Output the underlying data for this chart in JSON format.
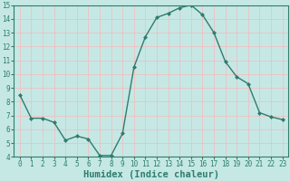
{
  "x": [
    0,
    1,
    2,
    3,
    4,
    5,
    6,
    7,
    8,
    9,
    10,
    11,
    12,
    13,
    14,
    15,
    16,
    17,
    18,
    19,
    20,
    21,
    22,
    23
  ],
  "y": [
    8.5,
    6.8,
    6.8,
    6.5,
    5.2,
    5.5,
    5.3,
    4.1,
    4.1,
    5.7,
    10.5,
    12.7,
    14.1,
    14.4,
    14.8,
    15.0,
    14.3,
    13.0,
    10.9,
    9.8,
    9.3,
    7.2,
    6.9,
    6.7
  ],
  "line_color": "#2e7d6e",
  "marker": "D",
  "marker_size": 2,
  "bg_color": "#c5e8e5",
  "grid_color": "#f0c0c0",
  "axis_color": "#2e7d6e",
  "xlabel": "Humidex (Indice chaleur)",
  "ylim": [
    4,
    15
  ],
  "xlim": [
    -0.5,
    23.5
  ],
  "yticks": [
    4,
    5,
    6,
    7,
    8,
    9,
    10,
    11,
    12,
    13,
    14,
    15
  ],
  "xticks": [
    0,
    1,
    2,
    3,
    4,
    5,
    6,
    7,
    8,
    9,
    10,
    11,
    12,
    13,
    14,
    15,
    16,
    17,
    18,
    19,
    20,
    21,
    22,
    23
  ],
  "tick_label_fontsize": 5.5,
  "xlabel_fontsize": 7.5,
  "xlabel_fontweight": "bold"
}
